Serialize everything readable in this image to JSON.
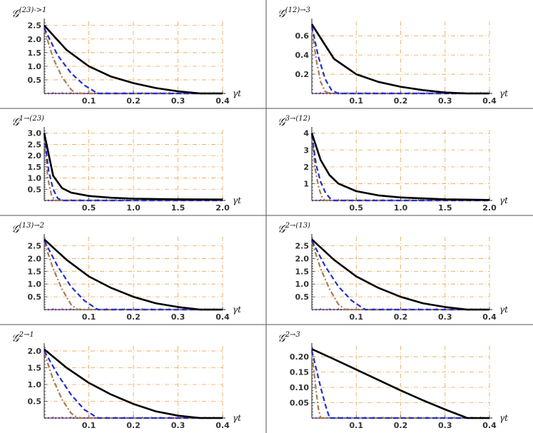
{
  "colors": {
    "black_curve": "#000000",
    "blue_curve": "#1f2fd6",
    "brown_curve": "#a67c4e",
    "purple_curve": "#7a3b9a",
    "grid": "#e8a550",
    "axis": "#222222",
    "separator": "#555555"
  },
  "chart_data": [
    {
      "type": "line",
      "title": {
        "base": "𝒢",
        "sup": "(23)->1"
      },
      "xlabel": "γt",
      "xlim": [
        0,
        0.4
      ],
      "ylim": [
        0,
        2.65
      ],
      "xticks": [
        0.1,
        0.2,
        0.3,
        0.4
      ],
      "xtick_labels": [
        "0.1",
        "0.2",
        "0.3",
        "0.4"
      ],
      "yticks": [
        0.5,
        1.0,
        1.5,
        2.0,
        2.5
      ],
      "ytick_labels": [
        "0.5",
        "1.0",
        "1.5",
        "2.0",
        "2.5"
      ],
      "grid": true,
      "series": [
        {
          "style": "solid",
          "color": "#000000",
          "x": [
            0,
            0.05,
            0.1,
            0.15,
            0.2,
            0.25,
            0.3,
            0.35,
            0.4
          ],
          "y": [
            2.5,
            1.6,
            1.0,
            0.62,
            0.38,
            0.2,
            0.08,
            0.0,
            0.0
          ]
        },
        {
          "style": "dashed",
          "color": "#1f2fd6",
          "x": [
            0,
            0.03,
            0.06,
            0.09,
            0.12,
            0.4
          ],
          "y": [
            2.4,
            1.4,
            0.75,
            0.3,
            0.0,
            0.0
          ]
        },
        {
          "style": "dashdot",
          "color": "#a67c4e",
          "x": [
            0,
            0.02,
            0.04,
            0.06,
            0.07,
            0.4
          ],
          "y": [
            2.35,
            1.3,
            0.6,
            0.15,
            0.0,
            0.0
          ]
        },
        {
          "style": "dotted",
          "color": "#7a3b9a",
          "x": [
            0,
            0.4
          ],
          "y": [
            0,
            0
          ]
        }
      ]
    },
    {
      "type": "line",
      "title": {
        "base": "𝒢",
        "sup": "(12)→3"
      },
      "xlabel": "γt",
      "xlim": [
        0,
        0.4
      ],
      "ylim": [
        0,
        0.75
      ],
      "xticks": [
        0.1,
        0.2,
        0.3,
        0.4
      ],
      "xtick_labels": [
        "0.1",
        "0.2",
        "0.3",
        "0.4"
      ],
      "yticks": [
        0.2,
        0.4,
        0.6
      ],
      "ytick_labels": [
        "0.2",
        "0.4",
        "0.6"
      ],
      "grid": true,
      "series": [
        {
          "style": "solid",
          "color": "#000000",
          "x": [
            0,
            0.05,
            0.1,
            0.15,
            0.2,
            0.25,
            0.3,
            0.35,
            0.4
          ],
          "y": [
            0.72,
            0.36,
            0.2,
            0.12,
            0.07,
            0.035,
            0.01,
            0.0,
            0.0
          ]
        },
        {
          "style": "dashed",
          "color": "#1f2fd6",
          "x": [
            0,
            0.015,
            0.03,
            0.045,
            0.06,
            0.4
          ],
          "y": [
            0.7,
            0.38,
            0.15,
            0.03,
            0.0,
            0.0
          ]
        },
        {
          "style": "dashdot",
          "color": "#a67c4e",
          "x": [
            0,
            0.01,
            0.02,
            0.03,
            0.04,
            0.4
          ],
          "y": [
            0.68,
            0.35,
            0.12,
            0.02,
            0.0,
            0.0
          ]
        },
        {
          "style": "dotted",
          "color": "#7a3b9a",
          "x": [
            0,
            0.4
          ],
          "y": [
            0,
            0
          ]
        }
      ]
    },
    {
      "type": "line",
      "title": {
        "base": "𝒢",
        "sup": "1→(23)"
      },
      "xlabel": "γt",
      "xlim": [
        0,
        2.0
      ],
      "ylim": [
        0,
        3.15
      ],
      "xticks": [
        0.5,
        1.0,
        1.5,
        2.0
      ],
      "xtick_labels": [
        "0.5",
        "1.0",
        "1.5",
        "2.0"
      ],
      "yticks": [
        0.5,
        1.0,
        1.5,
        2.0,
        2.5,
        3.0
      ],
      "ytick_labels": [
        "0.5",
        "1.0",
        "1.5",
        "2.0",
        "2.5",
        "3.0"
      ],
      "grid": true,
      "series": [
        {
          "style": "solid",
          "color": "#000000",
          "x": [
            0,
            0.1,
            0.2,
            0.3,
            0.5,
            0.75,
            1.0,
            1.5,
            2.0
          ],
          "y": [
            3.0,
            1.1,
            0.55,
            0.35,
            0.2,
            0.12,
            0.08,
            0.05,
            0.04
          ]
        },
        {
          "style": "dashed",
          "color": "#1f2fd6",
          "x": [
            0,
            0.05,
            0.1,
            0.15,
            0.2,
            2.0
          ],
          "y": [
            2.9,
            1.3,
            0.5,
            0.1,
            0.0,
            0.0
          ]
        },
        {
          "style": "dashdot",
          "color": "#a67c4e",
          "x": [
            0,
            0.04,
            0.08,
            0.12,
            2.0
          ],
          "y": [
            2.8,
            1.0,
            0.25,
            0.0,
            0.0
          ]
        },
        {
          "style": "dotted",
          "color": "#7a3b9a",
          "x": [
            0,
            2.0
          ],
          "y": [
            0,
            0
          ]
        }
      ]
    },
    {
      "type": "line",
      "title": {
        "base": "𝒢",
        "sup": "3→(12)"
      },
      "xlabel": "γt",
      "xlim": [
        0,
        2.0
      ],
      "ylim": [
        0,
        4.2
      ],
      "xticks": [
        0.5,
        1.0,
        1.5,
        2.0
      ],
      "xtick_labels": [
        "0.5",
        "1.0",
        "1.5",
        "2.0"
      ],
      "yticks": [
        1,
        2,
        3,
        4
      ],
      "ytick_labels": [
        "1",
        "2",
        "3",
        "4"
      ],
      "grid": true,
      "series": [
        {
          "style": "solid",
          "color": "#000000",
          "x": [
            0,
            0.1,
            0.2,
            0.3,
            0.5,
            0.75,
            1.0,
            1.5,
            2.0
          ],
          "y": [
            4.0,
            2.4,
            1.5,
            1.0,
            0.55,
            0.3,
            0.18,
            0.07,
            0.03
          ]
        },
        {
          "style": "dashed",
          "color": "#1f2fd6",
          "x": [
            0,
            0.05,
            0.1,
            0.15,
            0.2,
            0.25,
            2.0
          ],
          "y": [
            3.9,
            2.1,
            1.1,
            0.5,
            0.15,
            0.0,
            0.0
          ]
        },
        {
          "style": "dashdot",
          "color": "#a67c4e",
          "x": [
            0,
            0.04,
            0.08,
            0.12,
            0.15,
            2.0
          ],
          "y": [
            3.8,
            1.8,
            0.7,
            0.15,
            0.0,
            0.0
          ]
        },
        {
          "style": "dotted",
          "color": "#7a3b9a",
          "x": [
            0,
            2.0
          ],
          "y": [
            0,
            0
          ]
        }
      ]
    },
    {
      "type": "line",
      "title": {
        "base": "𝒢",
        "sup": "(13)→2"
      },
      "xlabel": "γt",
      "xlim": [
        0,
        0.4
      ],
      "ylim": [
        0,
        2.85
      ],
      "xticks": [
        0.1,
        0.2,
        0.3,
        0.4
      ],
      "xtick_labels": [
        "0.1",
        "0.2",
        "0.3",
        "0.4"
      ],
      "yticks": [
        0.5,
        1.0,
        1.5,
        2.0,
        2.5
      ],
      "ytick_labels": [
        "0.5",
        "1.0",
        "1.5",
        "2.0",
        "2.5"
      ],
      "grid": true,
      "series": [
        {
          "style": "solid",
          "color": "#000000",
          "x": [
            0,
            0.05,
            0.1,
            0.15,
            0.2,
            0.25,
            0.3,
            0.35,
            0.4
          ],
          "y": [
            2.75,
            1.95,
            1.3,
            0.85,
            0.5,
            0.25,
            0.1,
            0.0,
            0.0
          ]
        },
        {
          "style": "dashed",
          "color": "#1f2fd6",
          "x": [
            0,
            0.03,
            0.06,
            0.09,
            0.12,
            0.4
          ],
          "y": [
            2.7,
            1.7,
            0.9,
            0.35,
            0.0,
            0.0
          ]
        },
        {
          "style": "dashdot",
          "color": "#a67c4e",
          "x": [
            0,
            0.02,
            0.04,
            0.06,
            0.075,
            0.4
          ],
          "y": [
            2.65,
            1.6,
            0.8,
            0.2,
            0.0,
            0.0
          ]
        },
        {
          "style": "dotted",
          "color": "#7a3b9a",
          "x": [
            0,
            0.4
          ],
          "y": [
            0,
            0
          ]
        }
      ]
    },
    {
      "type": "line",
      "title": {
        "base": "𝒢",
        "sup": "2→(13)"
      },
      "xlabel": "γt",
      "xlim": [
        0,
        0.4
      ],
      "ylim": [
        0,
        2.85
      ],
      "xticks": [
        0.1,
        0.2,
        0.3,
        0.4
      ],
      "xtick_labels": [
        "0.1",
        "0.2",
        "0.3",
        "0.4"
      ],
      "yticks": [
        0.5,
        1.0,
        1.5,
        2.0,
        2.5
      ],
      "ytick_labels": [
        "0.5",
        "1.0",
        "1.5",
        "2.0",
        "2.5"
      ],
      "grid": true,
      "series": [
        {
          "style": "solid",
          "color": "#000000",
          "x": [
            0,
            0.05,
            0.1,
            0.15,
            0.2,
            0.25,
            0.3,
            0.35,
            0.4
          ],
          "y": [
            2.75,
            1.95,
            1.3,
            0.85,
            0.5,
            0.25,
            0.1,
            0.0,
            0.0
          ]
        },
        {
          "style": "dashed",
          "color": "#1f2fd6",
          "x": [
            0,
            0.03,
            0.06,
            0.09,
            0.12,
            0.4
          ],
          "y": [
            2.7,
            1.7,
            0.9,
            0.35,
            0.0,
            0.0
          ]
        },
        {
          "style": "dashdot",
          "color": "#a67c4e",
          "x": [
            0,
            0.02,
            0.04,
            0.06,
            0.075,
            0.4
          ],
          "y": [
            2.65,
            1.6,
            0.8,
            0.2,
            0.0,
            0.0
          ]
        },
        {
          "style": "dotted",
          "color": "#7a3b9a",
          "x": [
            0,
            0.4
          ],
          "y": [
            0,
            0
          ]
        }
      ]
    },
    {
      "type": "line",
      "title": {
        "base": "𝒢",
        "sup": "2→1"
      },
      "xlabel": "γt",
      "xlim": [
        0,
        0.4
      ],
      "ylim": [
        0,
        2.15
      ],
      "xticks": [
        0.1,
        0.2,
        0.3,
        0.4
      ],
      "xtick_labels": [
        "0.1",
        "0.2",
        "0.3",
        "0.4"
      ],
      "yticks": [
        0.5,
        1.0,
        1.5,
        2.0
      ],
      "ytick_labels": [
        "0.5",
        "1.0",
        "1.5",
        "2.0"
      ],
      "grid": true,
      "series": [
        {
          "style": "solid",
          "color": "#000000",
          "x": [
            0,
            0.05,
            0.1,
            0.15,
            0.2,
            0.25,
            0.3,
            0.35,
            0.4
          ],
          "y": [
            2.05,
            1.5,
            1.05,
            0.7,
            0.42,
            0.2,
            0.07,
            0.0,
            0.0
          ]
        },
        {
          "style": "dashed",
          "color": "#1f2fd6",
          "x": [
            0,
            0.03,
            0.06,
            0.09,
            0.12,
            0.4
          ],
          "y": [
            2.0,
            1.3,
            0.7,
            0.25,
            0.0,
            0.0
          ]
        },
        {
          "style": "dashdot",
          "color": "#a67c4e",
          "x": [
            0,
            0.02,
            0.04,
            0.06,
            0.075,
            0.4
          ],
          "y": [
            1.95,
            1.15,
            0.55,
            0.15,
            0.0,
            0.0
          ]
        },
        {
          "style": "dotted",
          "color": "#7a3b9a",
          "x": [
            0,
            0.4
          ],
          "y": [
            0,
            0
          ]
        }
      ]
    },
    {
      "type": "line",
      "title": {
        "base": "𝒢",
        "sup": "2→3"
      },
      "xlabel": "γt",
      "xlim": [
        0,
        0.4
      ],
      "ylim": [
        0,
        0.235
      ],
      "xticks": [
        0.1,
        0.2,
        0.3,
        0.4
      ],
      "xtick_labels": [
        "0.1",
        "0.2",
        "0.3",
        "0.4"
      ],
      "yticks": [
        0.05,
        0.1,
        0.15,
        0.2
      ],
      "ytick_labels": [
        "0.05",
        "0.10",
        "0.15",
        "0.20"
      ],
      "grid": true,
      "series": [
        {
          "style": "solid",
          "color": "#000000",
          "x": [
            0,
            0.05,
            0.1,
            0.15,
            0.2,
            0.25,
            0.3,
            0.35,
            0.4
          ],
          "y": [
            0.225,
            0.192,
            0.158,
            0.124,
            0.09,
            0.058,
            0.028,
            0.0,
            0.0
          ]
        },
        {
          "style": "dashed",
          "color": "#1f2fd6",
          "x": [
            0,
            0.01,
            0.02,
            0.03,
            0.04,
            0.4
          ],
          "y": [
            0.22,
            0.16,
            0.1,
            0.045,
            0.0,
            0.0
          ]
        },
        {
          "style": "dashdot",
          "color": "#a67c4e",
          "x": [
            0,
            0.005,
            0.01,
            0.015,
            0.02,
            0.4
          ],
          "y": [
            0.215,
            0.15,
            0.085,
            0.03,
            0.0,
            0.0
          ]
        },
        {
          "style": "dotted",
          "color": "#7a3b9a",
          "x": [
            0,
            0.4
          ],
          "y": [
            0,
            0
          ]
        }
      ]
    }
  ]
}
